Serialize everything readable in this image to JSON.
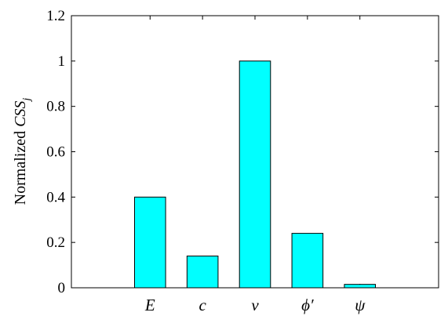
{
  "chart_data": {
    "type": "bar",
    "title": "",
    "xlabel": "",
    "ylabel": "Normalized CSS_j",
    "ylabel_parts": {
      "text": "Normalized ",
      "italic": "CSS",
      "subscript": "j"
    },
    "categories": [
      "",
      "E",
      "c",
      "ν",
      "ϕ′",
      "ψ",
      ""
    ],
    "values": [
      0,
      0.4,
      0.14,
      1.0,
      0.24,
      0.015,
      0
    ],
    "ylim": [
      0,
      1.2
    ],
    "yticks": [
      "0",
      "0.2",
      "0.4",
      "0.6",
      "0.8",
      "1",
      "1.2"
    ],
    "ytick_values": [
      0,
      0.2,
      0.4,
      0.6,
      0.8,
      1.0,
      1.2
    ],
    "grid": false,
    "bar_color": "#00FFFF",
    "bar_edge_color": "#000000"
  }
}
